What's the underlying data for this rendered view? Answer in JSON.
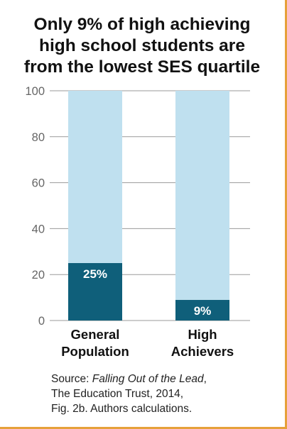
{
  "title_lines": [
    "Only 9% of high achieving",
    "high school students are",
    "from the lowest SES quartile"
  ],
  "source": {
    "prefix": "Source: ",
    "work": "Falling Out of the Lead",
    "suffix": ",",
    "line2": "The Education Trust, 2014,",
    "line3": "Fig. 2b. Authors calculations."
  },
  "colors": {
    "bar_light": "#bfe0ef",
    "bar_dark": "#0f5f7a",
    "grid": "#9a9a9a",
    "frame": "#e6a13a"
  },
  "chart_data": {
    "type": "bar",
    "stacked": true,
    "categories": [
      "General Population",
      "High Achievers"
    ],
    "category_lines": [
      [
        "General",
        "Population"
      ],
      [
        "High",
        "Achievers"
      ]
    ],
    "series": [
      {
        "values": [
          25,
          9
        ],
        "labels": [
          "25%",
          "9%"
        ]
      },
      {
        "values": [
          75,
          91
        ]
      }
    ],
    "ylim": [
      0,
      100
    ],
    "yticks": [
      0,
      20,
      40,
      60,
      80,
      100
    ],
    "grid": true,
    "title": "Only 9% of high achieving high school students are from the lowest SES quartile"
  }
}
